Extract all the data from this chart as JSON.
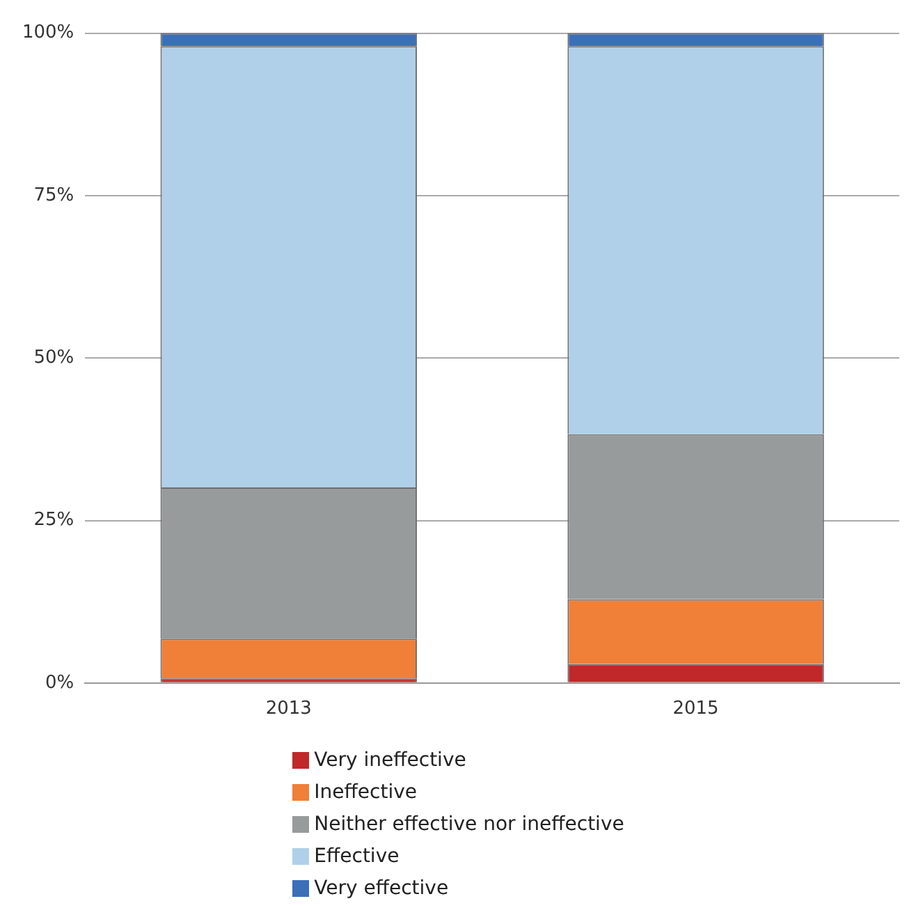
{
  "chart_data": {
    "type": "bar",
    "stacked": true,
    "categories": [
      "2013",
      "2015"
    ],
    "series": [
      {
        "name": "Very ineffective",
        "color": "#c0282a",
        "values": [
          0.7,
          2.9
        ]
      },
      {
        "name": "Ineffective",
        "color": "#f07f38",
        "values": [
          6.1,
          10.0
        ]
      },
      {
        "name": "Neither effective nor ineffective",
        "color": "#989b9c",
        "values": [
          23.3,
          25.4
        ]
      },
      {
        "name": "Effective",
        "color": "#afd0e8",
        "values": [
          67.9,
          59.7
        ]
      },
      {
        "name": "Very effective",
        "color": "#3b6fb8",
        "values": [
          2,
          2
        ]
      }
    ],
    "ylim": [
      0,
      100
    ],
    "yticks": [
      {
        "value": 0,
        "label": "0%"
      },
      {
        "value": 25,
        "label": "25%"
      },
      {
        "value": 50,
        "label": "50%"
      },
      {
        "value": 75,
        "label": "75%"
      },
      {
        "value": 100,
        "label": "100%"
      }
    ],
    "grid": "y",
    "legend": "bottom"
  }
}
